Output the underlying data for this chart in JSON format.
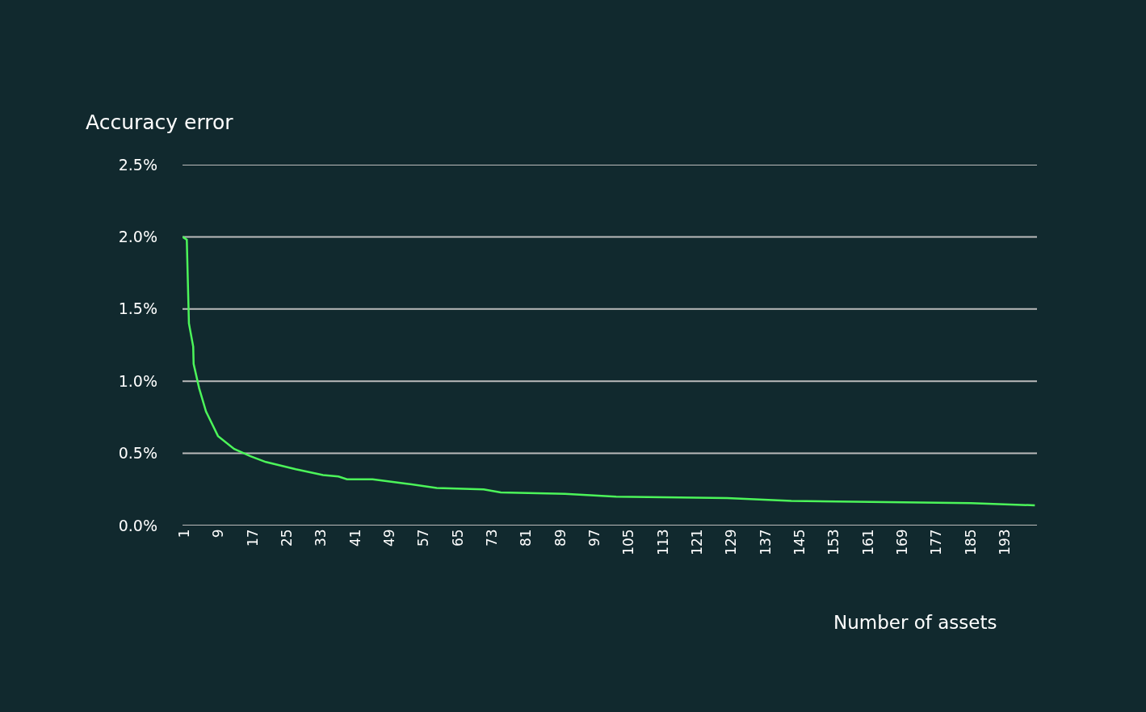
{
  "chart_data": {
    "type": "line",
    "ylabel": "Accuracy error",
    "xlabel": "Number of assets",
    "x": [
      0.5,
      1.5,
      2,
      3,
      3.1,
      4.4,
      6,
      8.8,
      12.6,
      16.4,
      20,
      27,
      33.4,
      37,
      39,
      45,
      53,
      60,
      71,
      75,
      90,
      102,
      128,
      143,
      185,
      200
    ],
    "series": [
      {
        "color": "#4cf55a",
        "values": [
          2.0,
          1.98,
          1.4,
          1.24,
          1.12,
          0.95,
          0.79,
          0.62,
          0.53,
          0.48,
          0.44,
          0.39,
          0.35,
          0.34,
          0.32,
          0.32,
          0.29,
          0.26,
          0.25,
          0.23,
          0.22,
          0.2,
          0.19,
          0.17,
          0.155,
          0.14
        ]
      }
    ],
    "xlim": [
      0.5,
      200.5
    ],
    "xticks": [
      1,
      9,
      17,
      25,
      33,
      41,
      49,
      57,
      65,
      73,
      81,
      89,
      97,
      105,
      113,
      121,
      129,
      137,
      145,
      153,
      161,
      169,
      177,
      185,
      193
    ],
    "ylim": [
      0,
      2.5
    ],
    "yticks": [
      {
        "value": 0,
        "label": "0.0%"
      },
      {
        "value": 0.5,
        "label": "0.5%"
      },
      {
        "value": 1.0,
        "label": "1.0%"
      },
      {
        "value": 1.5,
        "label": "1.5%"
      },
      {
        "value": 2.0,
        "label": "2.0%"
      },
      {
        "value": 2.5,
        "label": "2.5%"
      }
    ],
    "grid": "y",
    "marker": "none",
    "line_style": "solid"
  }
}
